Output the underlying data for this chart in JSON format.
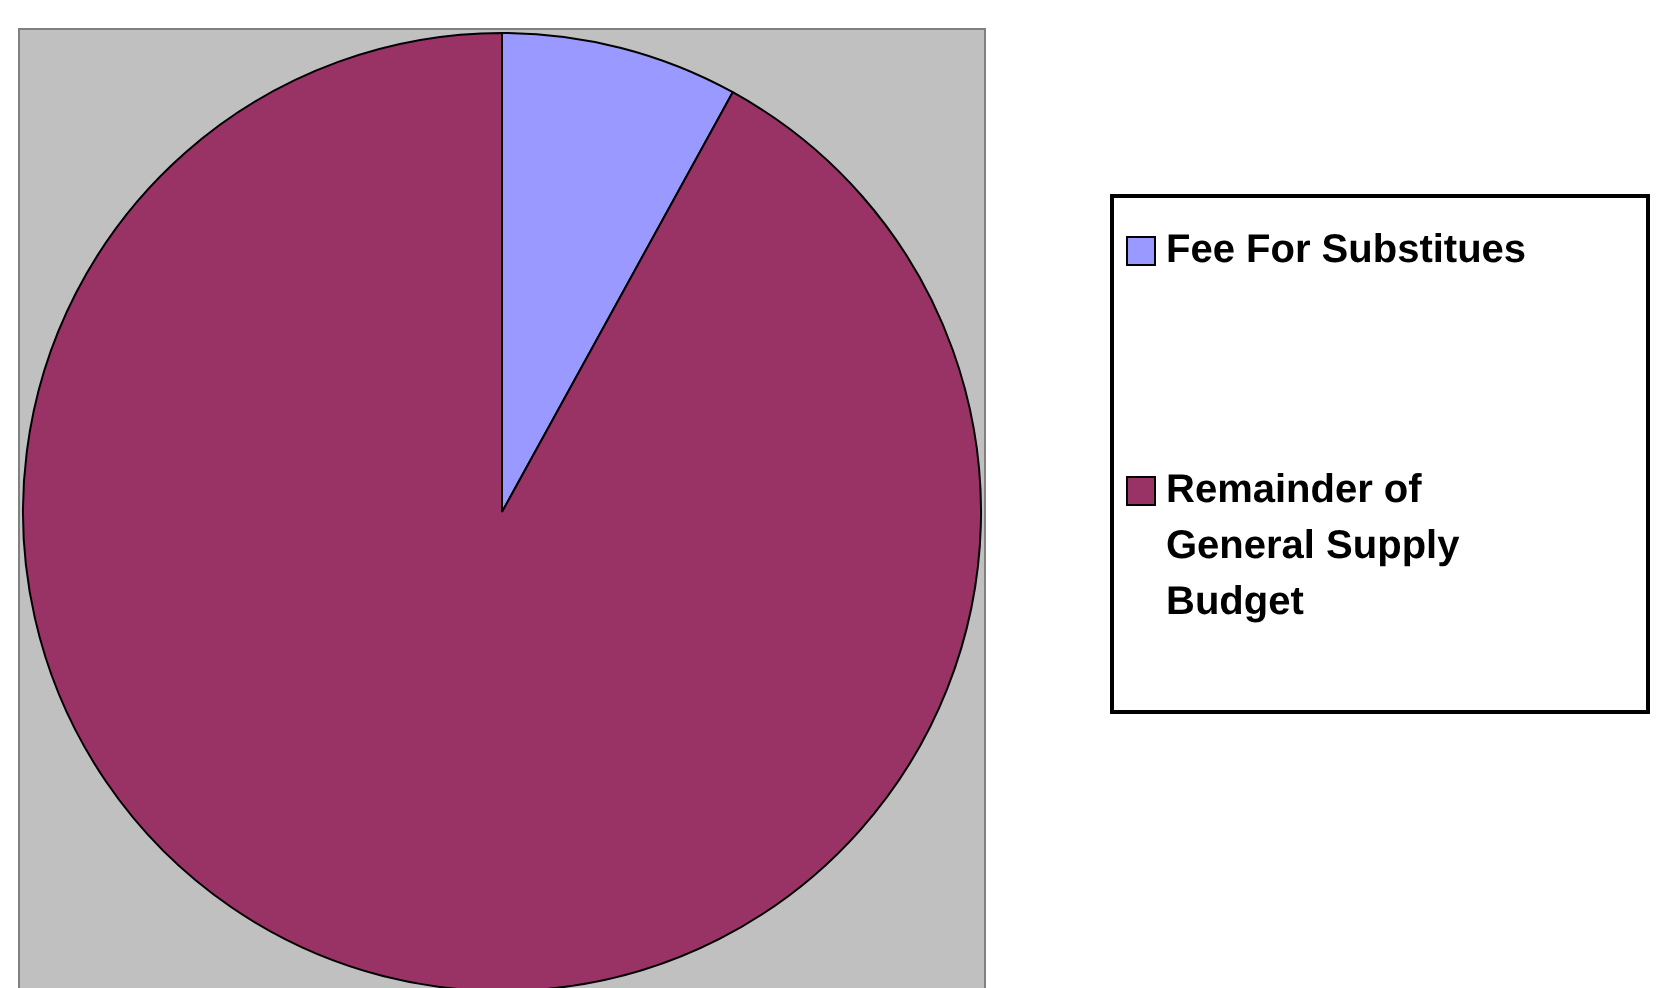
{
  "chart_data": {
    "type": "pie",
    "categories": [
      "Fee For Substitues",
      "Remainder of General Supply Budget"
    ],
    "values": [
      8,
      92
    ],
    "colors": [
      "#9999ff",
      "#993366"
    ],
    "legend": "right"
  }
}
